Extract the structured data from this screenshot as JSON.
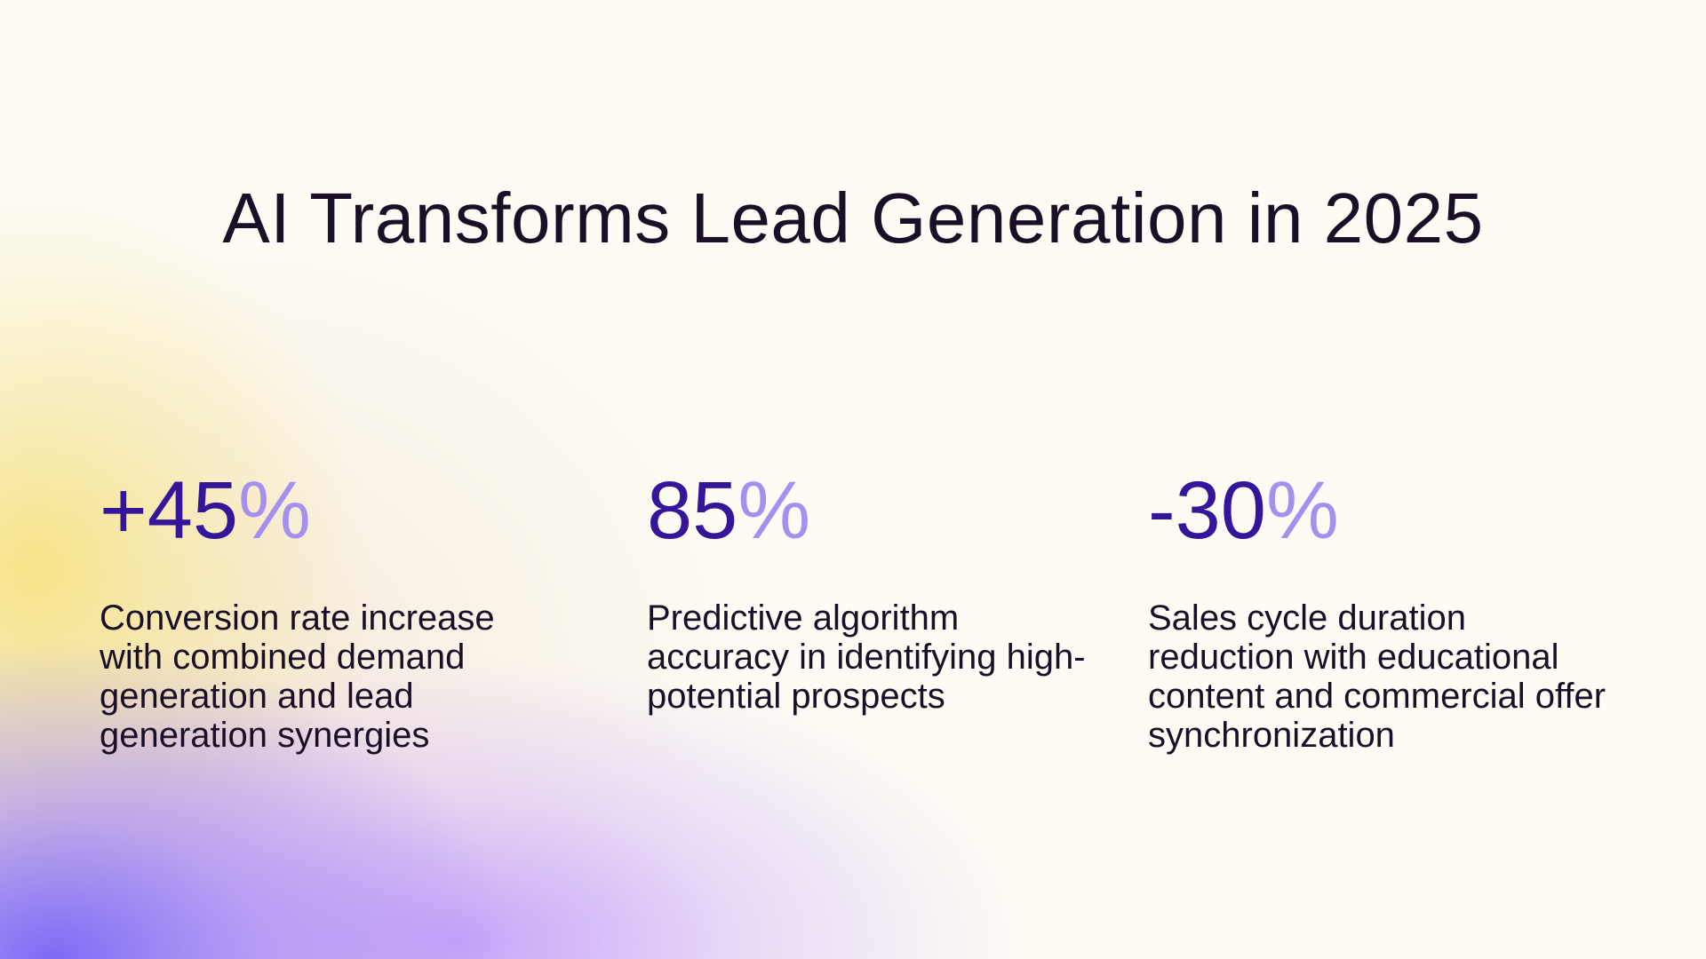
{
  "title": "AI Transforms Lead Generation in 2025",
  "colors": {
    "background": "#fdfbf4",
    "title_text": "#1a0f26",
    "stat_number": "#35169a",
    "stat_unit": "#a590f0"
  },
  "stats": [
    {
      "number": "+45",
      "unit": "%",
      "description": "Conversion rate increase with combined demand generation and lead generation synergies"
    },
    {
      "number": "85",
      "unit": "%",
      "description": "Predictive algorithm accuracy in identifying high-potential prospects"
    },
    {
      "number": "-30",
      "unit": "%",
      "description": "Sales cycle duration reduction with educational content and commercial offer synchronization"
    }
  ]
}
